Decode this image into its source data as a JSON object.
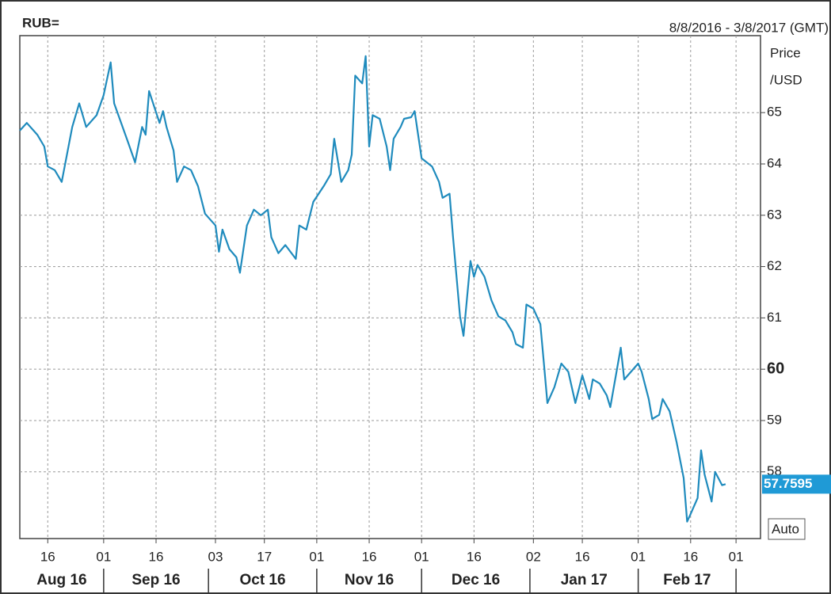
{
  "chart_data": {
    "type": "line",
    "title": "RUB=",
    "subtitle": "8/8/2016 - 3/8/2017 (GMT)",
    "y_axis_label": [
      "Price",
      "/USD"
    ],
    "button": "Auto",
    "last_price": 57.7595,
    "color": "#1f8bbd",
    "grid": true,
    "xlim": [
      "2016-08-08",
      "2017-03-08"
    ],
    "ylim": [
      56.7,
      66.5
    ],
    "yticks": [
      58,
      59,
      60,
      61,
      62,
      63,
      64,
      65
    ],
    "bold_ytick": 60,
    "xticks": [
      {
        "value": "2016-08-16",
        "label": "16"
      },
      {
        "value": "2016-09-01",
        "label": "01"
      },
      {
        "value": "2016-09-16",
        "label": "16"
      },
      {
        "value": "2016-10-03",
        "label": "03"
      },
      {
        "value": "2016-10-17",
        "label": "17"
      },
      {
        "value": "2016-11-01",
        "label": "01"
      },
      {
        "value": "2016-11-16",
        "label": "16"
      },
      {
        "value": "2016-12-01",
        "label": "01"
      },
      {
        "value": "2016-12-16",
        "label": "16"
      },
      {
        "value": "2017-01-02",
        "label": "02"
      },
      {
        "value": "2017-01-16",
        "label": "16"
      },
      {
        "value": "2017-02-01",
        "label": "01"
      },
      {
        "value": "2017-02-16",
        "label": "16"
      },
      {
        "value": "2017-03-01",
        "label": "01"
      }
    ],
    "months": [
      "Aug 16",
      "Sep 16",
      "Oct 16",
      "Nov 16",
      "Dec 16",
      "Jan 17",
      "Feb 17"
    ],
    "x": [
      "2016-08-08",
      "2016-08-10",
      "2016-08-13",
      "2016-08-15",
      "2016-08-16",
      "2016-08-18",
      "2016-08-20",
      "2016-08-23",
      "2016-08-25",
      "2016-08-27",
      "2016-08-30",
      "2016-09-01",
      "2016-09-03",
      "2016-09-04",
      "2016-09-08",
      "2016-09-10",
      "2016-09-12",
      "2016-09-13",
      "2016-09-14",
      "2016-09-17",
      "2016-09-18",
      "2016-09-19",
      "2016-09-21",
      "2016-09-22",
      "2016-09-24",
      "2016-09-26",
      "2016-09-28",
      "2016-09-30",
      "2016-10-03",
      "2016-10-04",
      "2016-10-05",
      "2016-10-07",
      "2016-10-09",
      "2016-10-10",
      "2016-10-12",
      "2016-10-14",
      "2016-10-16",
      "2016-10-18",
      "2016-10-19",
      "2016-10-21",
      "2016-10-23",
      "2016-10-26",
      "2016-10-27",
      "2016-10-29",
      "2016-10-31",
      "2016-11-03",
      "2016-11-05",
      "2016-11-06",
      "2016-11-08",
      "2016-11-10",
      "2016-11-11",
      "2016-11-12",
      "2016-11-14",
      "2016-11-15",
      "2016-11-16",
      "2016-11-17",
      "2016-11-19",
      "2016-11-21",
      "2016-11-22",
      "2016-11-23",
      "2016-11-25",
      "2016-11-26",
      "2016-11-28",
      "2016-11-29",
      "2016-12-01",
      "2016-12-04",
      "2016-12-06",
      "2016-12-07",
      "2016-12-09",
      "2016-12-10",
      "2016-12-12",
      "2016-12-13",
      "2016-12-15",
      "2016-12-16",
      "2016-12-17",
      "2016-12-19",
      "2016-12-21",
      "2016-12-23",
      "2016-12-25",
      "2016-12-27",
      "2016-12-28",
      "2016-12-30",
      "2016-12-31",
      "2017-01-02",
      "2017-01-04",
      "2017-01-05",
      "2017-01-06",
      "2017-01-08",
      "2017-01-10",
      "2017-01-12",
      "2017-01-13",
      "2017-01-14",
      "2017-01-16",
      "2017-01-18",
      "2017-01-19",
      "2017-01-21",
      "2017-01-23",
      "2017-01-24",
      "2017-01-27",
      "2017-01-28",
      "2017-02-01",
      "2017-02-02",
      "2017-02-04",
      "2017-02-05",
      "2017-02-07",
      "2017-02-08",
      "2017-02-10",
      "2017-02-12",
      "2017-02-14",
      "2017-02-15",
      "2017-02-16",
      "2017-02-18",
      "2017-02-19",
      "2017-02-20",
      "2017-02-22",
      "2017-02-23",
      "2017-02-25",
      "2017-02-26"
    ],
    "series": [
      {
        "name": "RUB=",
        "color": "#1f8bbd",
        "values": [
          64.65,
          64.8,
          64.57,
          64.34,
          63.95,
          63.88,
          63.65,
          64.72,
          65.18,
          64.72,
          64.95,
          65.34,
          65.98,
          65.18,
          64.42,
          64.03,
          64.72,
          64.57,
          65.42,
          64.8,
          65.03,
          64.72,
          64.26,
          63.65,
          63.95,
          63.88,
          63.57,
          63.03,
          62.8,
          62.29,
          62.72,
          62.34,
          62.18,
          61.88,
          62.8,
          63.11,
          63.0,
          63.11,
          62.57,
          62.26,
          62.42,
          62.15,
          62.8,
          62.72,
          63.26,
          63.57,
          63.8,
          64.49,
          63.65,
          63.88,
          64.18,
          65.72,
          65.57,
          66.1,
          64.34,
          64.95,
          64.88,
          64.34,
          63.88,
          64.49,
          64.72,
          64.88,
          64.91,
          65.03,
          64.11,
          63.95,
          63.65,
          63.34,
          63.42,
          62.57,
          61.03,
          60.65,
          62.11,
          61.8,
          62.03,
          61.8,
          61.34,
          61.03,
          60.95,
          60.72,
          60.49,
          60.42,
          61.26,
          61.18,
          60.88,
          60.11,
          59.34,
          59.65,
          60.11,
          59.95,
          59.65,
          59.34,
          59.88,
          59.42,
          59.8,
          59.72,
          59.49,
          59.26,
          60.42,
          59.8,
          60.11,
          59.95,
          59.42,
          59.03,
          59.11,
          59.42,
          59.18,
          58.57,
          57.88,
          57.03,
          57.18,
          57.49,
          58.42,
          57.95,
          57.42,
          58.0,
          57.74,
          57.7595
        ]
      }
    ]
  }
}
